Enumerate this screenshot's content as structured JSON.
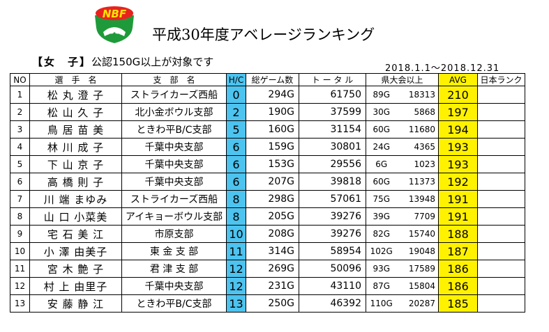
{
  "logo_text": "NBF",
  "title": "平成30年度アベレージランキング",
  "category": "【女　子】",
  "criteria": "公認150G以上が対象です",
  "period": "2018.1.1～2018.12.31",
  "headers": {
    "no": "NO",
    "name": "選　手　名",
    "branch": "支　部　名",
    "hc": "H/C",
    "games": "総ゲーム数",
    "total": "ト ー タ ル",
    "kentai": "県大会以上",
    "avg": "AVG",
    "rank": "日本ランク"
  },
  "rows": [
    {
      "no": "1",
      "name": "松 丸 澄 子",
      "branch": "ストライカーズ西船",
      "hc": "0",
      "games": "294G",
      "total": "61750",
      "kg": "89G",
      "ks": "18313",
      "avg": "210",
      "rank": ""
    },
    {
      "no": "2",
      "name": "松 山 久 子",
      "branch": "北小金ボウル支部",
      "hc": "2",
      "games": "190G",
      "total": "37599",
      "kg": "30G",
      "ks": "5868",
      "avg": "197",
      "rank": ""
    },
    {
      "no": "3",
      "name": "鳥 居 苗 美",
      "branch": "ときわ平B/C支部",
      "hc": "5",
      "games": "160G",
      "total": "31154",
      "kg": "60G",
      "ks": "11680",
      "avg": "194",
      "rank": ""
    },
    {
      "no": "4",
      "name": "林 川 成 子",
      "branch": "千葉中央支部",
      "hc": "6",
      "games": "159G",
      "total": "30801",
      "kg": "24G",
      "ks": "4365",
      "avg": "193",
      "rank": ""
    },
    {
      "no": "5",
      "name": "下 山 京 子",
      "branch": "千葉中央支部",
      "hc": "6",
      "games": "153G",
      "total": "29556",
      "kg": "6G",
      "ks": "1023",
      "avg": "193",
      "rank": ""
    },
    {
      "no": "6",
      "name": "高 橋 則 子",
      "branch": "千葉中央支部",
      "hc": "6",
      "games": "207G",
      "total": "39818",
      "kg": "60G",
      "ks": "11373",
      "avg": "192",
      "rank": ""
    },
    {
      "no": "7",
      "name": "川 端 まゆみ",
      "branch": "ストライカーズ西船",
      "hc": "8",
      "games": "298G",
      "total": "57061",
      "kg": "75G",
      "ks": "13948",
      "avg": "191",
      "rank": ""
    },
    {
      "no": "8",
      "name": "山 口 小菜美",
      "branch": "アイキョーボウル支部",
      "hc": "8",
      "games": "205G",
      "total": "39276",
      "kg": "39G",
      "ks": "7709",
      "avg": "191",
      "rank": ""
    },
    {
      "no": "9",
      "name": "宅 石 美 江",
      "branch": "市原支部",
      "hc": "10",
      "games": "208G",
      "total": "39276",
      "kg": "82G",
      "ks": "15740",
      "avg": "188",
      "rank": ""
    },
    {
      "no": "10",
      "name": "小 澤 由美子",
      "branch": "東 金 支 部",
      "hc": "11",
      "games": "314G",
      "total": "58954",
      "kg": "102G",
      "ks": "19048",
      "avg": "187",
      "rank": ""
    },
    {
      "no": "11",
      "name": "宮 木 艶 子",
      "branch": "君 津 支 部",
      "hc": "12",
      "games": "269G",
      "total": "50096",
      "kg": "93G",
      "ks": "17589",
      "avg": "186",
      "rank": ""
    },
    {
      "no": "12",
      "name": "村 上 由里子",
      "branch": "千葉中央支部",
      "hc": "12",
      "games": "231G",
      "total": "43110",
      "kg": "87G",
      "ks": "15804",
      "avg": "186",
      "rank": ""
    },
    {
      "no": "13",
      "name": "安 藤 静 江",
      "branch": "ときわ平B/C支部",
      "hc": "13",
      "games": "250G",
      "total": "46392",
      "kg": "110G",
      "ks": "20287",
      "avg": "185",
      "rank": ""
    }
  ]
}
